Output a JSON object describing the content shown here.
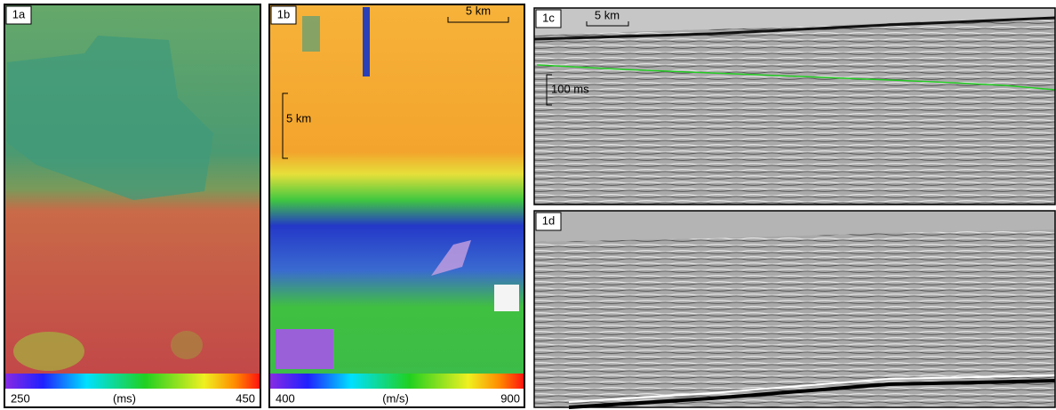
{
  "panels": [
    {
      "label": "1a",
      "colorbar": {
        "min": 250,
        "unit": "(ms)",
        "max": 450
      }
    },
    {
      "label": "1b",
      "scale_bars": [
        "5 km",
        "5 km"
      ],
      "colorbar": {
        "min": 400,
        "unit": "(m/s)",
        "max": 900
      }
    },
    {
      "label": "1c",
      "scale_bars": [
        "5 km",
        "100 ms"
      ]
    },
    {
      "label": "1d"
    }
  ]
}
